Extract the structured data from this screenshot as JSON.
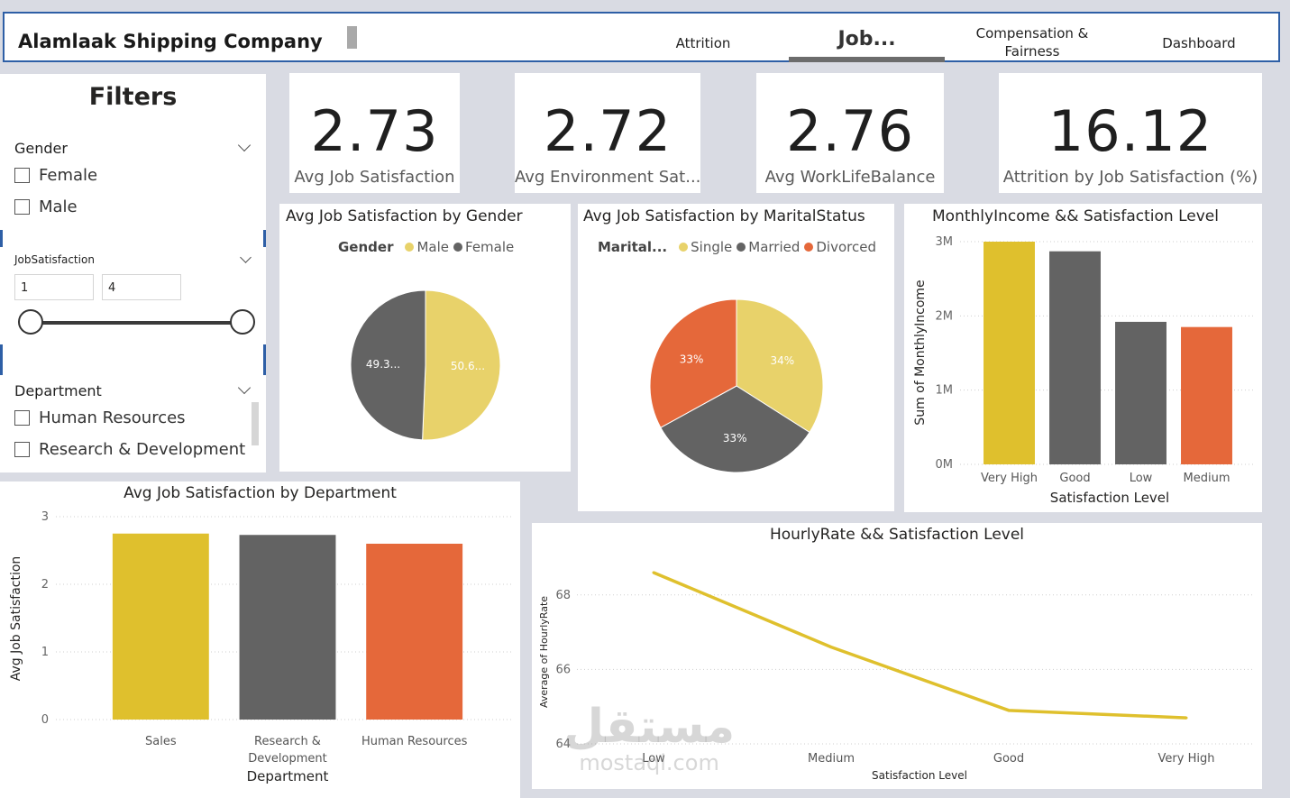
{
  "header": {
    "company": "Alamlaak Shipping Company",
    "tabs": [
      {
        "label": "Attrition"
      },
      {
        "label": "Job..."
      },
      {
        "label": "Compensation & Fairness"
      },
      {
        "label": "Dashboard"
      }
    ],
    "active_tab": "Job..."
  },
  "filters": {
    "title": "Filters",
    "gender": {
      "title": "Gender",
      "options": [
        "Female",
        "Male"
      ]
    },
    "job_satisfaction": {
      "title": "JobSatisfaction",
      "min": "1",
      "max": "4"
    },
    "department": {
      "title": "Department",
      "options": [
        "Human Resources",
        "Research & Development"
      ]
    }
  },
  "kpis": [
    {
      "value": "2.73",
      "label": "Avg Job Satisfaction"
    },
    {
      "value": "2.72",
      "label": "Avg Environment Sat..."
    },
    {
      "value": "2.76",
      "label": "Avg WorkLifeBalance"
    },
    {
      "value": "16.12",
      "label": "Attrition by Job Satisfaction (%)"
    }
  ],
  "colors": {
    "yellow": "#dfc02d",
    "yellow_light": "#e8d26a",
    "grey": "#636363",
    "orange": "#e5683a",
    "accent_blue": "#2e5fa6"
  },
  "chart_data": [
    {
      "type": "pie",
      "title": "Avg Job Satisfaction by Gender",
      "legend_title": "Gender",
      "labels": [
        "Male",
        "Female"
      ],
      "values": [
        50.6,
        49.3
      ],
      "data_labels": [
        "50.6...",
        "49.3..."
      ],
      "colors": [
        "#e8d26a",
        "#636363"
      ]
    },
    {
      "type": "pie",
      "title": "Avg Job Satisfaction by MaritalStatus",
      "legend_title": "Marital...",
      "labels": [
        "Single",
        "Married",
        "Divorced"
      ],
      "values": [
        34,
        33,
        33
      ],
      "data_labels": [
        "34%",
        "33%",
        "33%"
      ],
      "colors": [
        "#e8d26a",
        "#636363",
        "#e5683a"
      ]
    },
    {
      "type": "bar",
      "title": "MonthlyIncome && Satisfaction Level",
      "categories": [
        "Very High",
        "Good",
        "Low",
        "Medium"
      ],
      "values": [
        3000000,
        2870000,
        1920000,
        1850000
      ],
      "colors": [
        "#dfc02d",
        "#636363",
        "#636363",
        "#e5683a"
      ],
      "xlabel": "Satisfaction Level",
      "ylabel": "Sum of MonthlyIncome",
      "ylim": [
        0,
        3000000
      ],
      "yticks": [
        {
          "v": 0,
          "label": "0M"
        },
        {
          "v": 1000000,
          "label": "1M"
        },
        {
          "v": 2000000,
          "label": "2M"
        },
        {
          "v": 3000000,
          "label": "3M"
        }
      ]
    },
    {
      "type": "bar",
      "title": "Avg Job Satisfaction by Department",
      "categories": [
        "Sales",
        "Research & Development",
        "Human Resources"
      ],
      "values": [
        2.75,
        2.73,
        2.6
      ],
      "colors": [
        "#dfc02d",
        "#636363",
        "#e5683a"
      ],
      "xlabel": "Department",
      "ylabel": "Avg Job Satisfaction",
      "ylim": [
        0,
        3
      ],
      "yticks": [
        {
          "v": 0,
          "label": "0"
        },
        {
          "v": 1,
          "label": "1"
        },
        {
          "v": 2,
          "label": "2"
        },
        {
          "v": 3,
          "label": "3"
        }
      ]
    },
    {
      "type": "line",
      "title": "HourlyRate && Satisfaction Level",
      "x": [
        "Low",
        "Medium",
        "Good",
        "Very High"
      ],
      "y": [
        68.6,
        66.6,
        64.9,
        64.7
      ],
      "color": "#dfc02d",
      "xlabel": "Satisfaction Level",
      "ylabel": "Average of HourlyRate",
      "ylim": [
        64,
        68.6
      ],
      "yticks": [
        {
          "v": 64,
          "label": "64"
        },
        {
          "v": 66,
          "label": "66"
        },
        {
          "v": 68,
          "label": "68"
        }
      ]
    }
  ],
  "watermark": {
    "arabic": "مستقل",
    "latin": "mostaql.com"
  }
}
